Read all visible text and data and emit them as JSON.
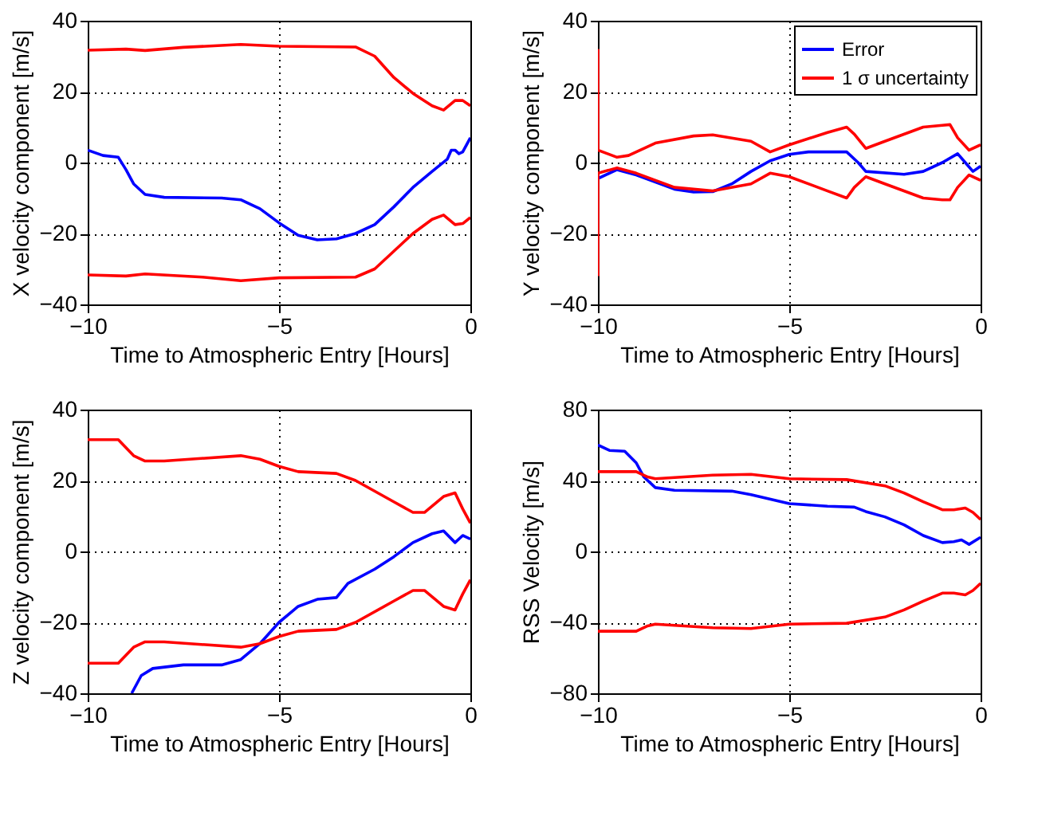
{
  "chart_data": [
    {
      "type": "line",
      "xlabel": "Time to Atmospheric Entry [Hours]",
      "ylabel": "X velocity component [m/s]",
      "xlim": [
        -10,
        0
      ],
      "ylim": [
        -40,
        40
      ],
      "xticks": [
        -10,
        -5,
        0
      ],
      "yticks": [
        -40,
        -20,
        0,
        20,
        40
      ],
      "grid": true,
      "legend": false,
      "series": [
        {
          "color": "#0000ff",
          "x": [
            -10,
            -9.6,
            -9.2,
            -9,
            -8.8,
            -8.5,
            -8,
            -6.5,
            -6,
            -5.5,
            -5,
            -4.5,
            -4,
            -3.5,
            -3,
            -2.5,
            -2,
            -1.5,
            -1,
            -0.6,
            -0.5,
            -0.4,
            -0.3,
            -0.2,
            0
          ],
          "values": [
            3.5,
            2,
            1.5,
            -2,
            -6,
            -9,
            -9.8,
            -10,
            -10.5,
            -13,
            -17,
            -20.5,
            -21.8,
            -21.5,
            -20,
            -17.5,
            -12.5,
            -7,
            -2.5,
            1,
            3.5,
            3.5,
            2.5,
            3,
            7
          ]
        },
        {
          "color": "#ff0000",
          "x": [
            -10,
            -9,
            -8.5,
            -7.5,
            -6,
            -5,
            -3,
            -2.5,
            -2,
            -1.5,
            -1,
            -0.7,
            -0.4,
            -0.2,
            0
          ],
          "values": [
            31.7,
            32,
            31.6,
            32.5,
            33.3,
            32.8,
            32.6,
            30,
            24,
            19.5,
            16,
            14.8,
            17.5,
            17.5,
            16
          ]
        },
        {
          "color": "#ff0000",
          "x": [
            -10,
            -9,
            -8.5,
            -7,
            -6,
            -5,
            -3,
            -2.5,
            -2,
            -1.5,
            -1,
            -0.7,
            -0.4,
            -0.2,
            0
          ],
          "values": [
            -31.7,
            -32,
            -31.4,
            -32.3,
            -33.3,
            -32.5,
            -32.3,
            -30,
            -25,
            -20,
            -16,
            -14.8,
            -17.5,
            -17.2,
            -15.5
          ]
        }
      ]
    },
    {
      "type": "line",
      "xlabel": "Time to Atmospheric Entry [Hours]",
      "ylabel": "Y velocity component [m/s]",
      "xlim": [
        -10,
        0
      ],
      "ylim": [
        -40,
        40
      ],
      "xticks": [
        -10,
        -5,
        0
      ],
      "yticks": [
        -40,
        -20,
        0,
        20,
        40
      ],
      "grid": true,
      "legend": "top right",
      "series": [
        {
          "name": "Error",
          "color": "#0000ff",
          "x": [
            -10,
            -9.5,
            -9,
            -8,
            -7.5,
            -7,
            -6.5,
            -6,
            -5.5,
            -5,
            -4.5,
            -3.5,
            -3.2,
            -3,
            -2,
            -1.5,
            -1,
            -0.6,
            -0.4,
            -0.2,
            0
          ],
          "values": [
            -4.5,
            -2,
            -3.5,
            -7.5,
            -8.3,
            -8.2,
            -6,
            -2.5,
            0.5,
            2.3,
            3,
            3,
            0,
            -2.5,
            -3.3,
            -2.5,
            0,
            2.5,
            0,
            -2.5,
            -1
          ]
        },
        {
          "name": "1 σ uncertainty",
          "color": "#ff0000",
          "x": [
            -10,
            -10,
            -9.5,
            -9.2,
            -8.5,
            -7.5,
            -7,
            -6,
            -5.5,
            -5,
            -4,
            -3.5,
            -3.3,
            -3,
            -2.5,
            -1.5,
            -1,
            -0.8,
            -0.6,
            -0.3,
            0
          ],
          "values": [
            32,
            3.5,
            1.5,
            2,
            5.5,
            7.5,
            7.8,
            6,
            3,
            5,
            8.5,
            10,
            8,
            4,
            6,
            10,
            10.5,
            10.7,
            7,
            3.5,
            5
          ]
        },
        {
          "color": "#ff0000",
          "x": [
            -10,
            -10,
            -9.5,
            -9,
            -8,
            -7,
            -6,
            -5.5,
            -5,
            -4,
            -3.5,
            -3.3,
            -3,
            -2.5,
            -1.5,
            -1,
            -0.8,
            -0.6,
            -0.3,
            0
          ],
          "values": [
            -32,
            -3,
            -1.5,
            -3,
            -7,
            -8,
            -6,
            -3,
            -4,
            -8,
            -10,
            -7,
            -4,
            -6,
            -10,
            -10.5,
            -10.5,
            -7,
            -3.5,
            -5
          ]
        }
      ]
    },
    {
      "type": "line",
      "xlabel": "Time to Atmospheric Entry [Hours]",
      "ylabel": "Z velocity component [m/s]",
      "xlim": [
        -10,
        0
      ],
      "ylim": [
        -40,
        40
      ],
      "xticks": [
        -10,
        -5,
        0
      ],
      "yticks": [
        -40,
        -20,
        0,
        20,
        40
      ],
      "grid": true,
      "legend": false,
      "series": [
        {
          "color": "#0000ff",
          "x": [
            -8.85,
            -8.6,
            -8.3,
            -7.5,
            -6.5,
            -6,
            -5.5,
            -5,
            -4.5,
            -4,
            -3.5,
            -3.2,
            -2.5,
            -2,
            -1.5,
            -1,
            -0.7,
            -0.4,
            -0.2,
            0
          ],
          "values": [
            -40,
            -35,
            -33,
            -32,
            -32,
            -30.5,
            -26,
            -20,
            -15.5,
            -13.5,
            -13,
            -9,
            -5,
            -1.5,
            2.5,
            5,
            5.8,
            2.5,
            4.5,
            3.5
          ]
        },
        {
          "color": "#ff0000",
          "x": [
            -10,
            -9.2,
            -8.8,
            -8.5,
            -8,
            -6,
            -5.5,
            -5,
            -4.5,
            -3.5,
            -3,
            -2,
            -1.5,
            -1.2,
            -0.7,
            -0.4,
            -0.2,
            0
          ],
          "values": [
            31.5,
            31.5,
            27,
            25.5,
            25.5,
            27,
            26,
            24,
            22.5,
            22,
            20,
            14,
            11,
            11,
            15.5,
            16.5,
            12,
            8
          ]
        },
        {
          "color": "#ff0000",
          "x": [
            -10,
            -9.2,
            -8.8,
            -8.5,
            -8,
            -6,
            -5.5,
            -5,
            -4.5,
            -3.5,
            -3,
            -2,
            -1.5,
            -1.2,
            -0.7,
            -0.4,
            -0.2,
            0
          ],
          "values": [
            -31.5,
            -31.5,
            -27,
            -25.5,
            -25.5,
            -27,
            -26,
            -24,
            -22.5,
            -22,
            -20,
            -14,
            -11,
            -11,
            -15.5,
            -16.5,
            -12,
            -8
          ]
        }
      ]
    },
    {
      "type": "line",
      "xlabel": "Time to Atmospheric Entry [Hours]",
      "ylabel": "RSS Velocity [m/s]",
      "xlim": [
        -10,
        0
      ],
      "ylim": [
        -80,
        80
      ],
      "xticks": [
        -10,
        -5,
        0
      ],
      "yticks": [
        -80,
        -40,
        0,
        40,
        80
      ],
      "grid": true,
      "legend": false,
      "series": [
        {
          "color": "#0000ff",
          "x": [
            -10,
            -9.7,
            -9.3,
            -9,
            -8.8,
            -8.5,
            -8,
            -6.5,
            -6,
            -5,
            -4,
            -3.3,
            -3,
            -2.5,
            -2,
            -1.5,
            -1,
            -0.7,
            -0.5,
            -0.3,
            0
          ],
          "values": [
            60,
            57,
            56.5,
            50,
            42,
            36,
            34.5,
            34,
            32,
            27,
            25.5,
            25,
            22.5,
            19.5,
            15,
            9,
            5,
            5.5,
            6.5,
            4,
            8
          ]
        },
        {
          "color": "#ff0000",
          "x": [
            -10,
            -9,
            -8.7,
            -8.5,
            -7,
            -6,
            -5,
            -3.5,
            -2.5,
            -2,
            -1.5,
            -1,
            -0.7,
            -0.4,
            -0.2,
            0
          ],
          "values": [
            45,
            45,
            42,
            41,
            43,
            43.5,
            41,
            40.5,
            37,
            33,
            28,
            23.5,
            23.5,
            24.5,
            22,
            18
          ]
        },
        {
          "color": "#ff0000",
          "x": [
            -10,
            -9,
            -8.7,
            -8.5,
            -7,
            -6,
            -5,
            -3.5,
            -2.5,
            -2,
            -1.5,
            -1,
            -0.7,
            -0.4,
            -0.2,
            0
          ],
          "values": [
            -45,
            -45,
            -42,
            -41,
            -43,
            -43.5,
            -41,
            -40.5,
            -37,
            -33,
            -28,
            -23.5,
            -23.5,
            -24.5,
            -22,
            -18
          ]
        }
      ]
    }
  ]
}
